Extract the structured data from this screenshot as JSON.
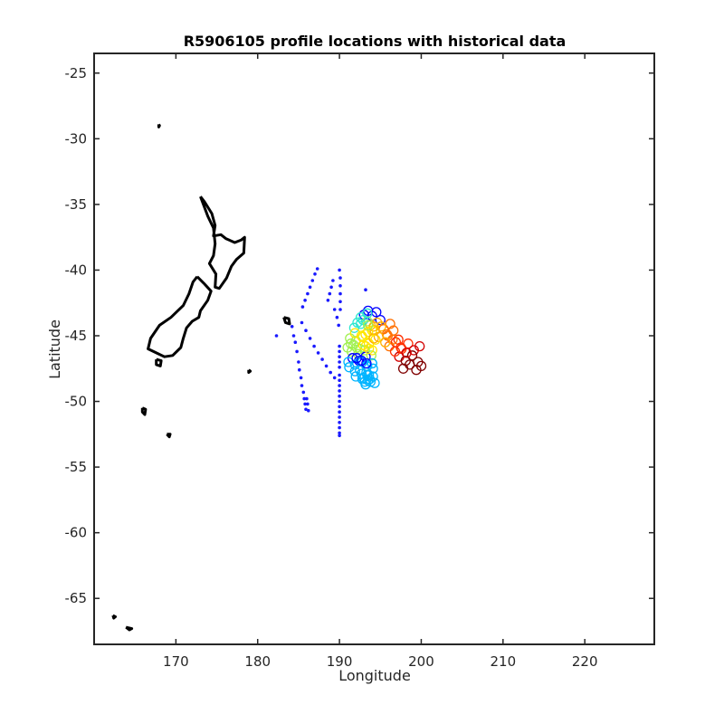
{
  "chart_data": {
    "type": "scatter",
    "title": "R5906105 profile locations with historical data",
    "xlabel": "Longitude",
    "ylabel": "Latitude",
    "xlim": [
      160,
      228.5
    ],
    "ylim": [
      -68.5,
      -23.5
    ],
    "xticks": [
      170,
      180,
      190,
      200,
      210,
      220
    ],
    "yticks": [
      -25,
      -30,
      -35,
      -40,
      -45,
      -50,
      -55,
      -60,
      -65
    ],
    "grid": false,
    "colors": {
      "coast": "#000000",
      "profiles": "#1a1aff",
      "historical_colormap": [
        "#00008f",
        "#0000ff",
        "#00b4ff",
        "#2ee6d0",
        "#a0f050",
        "#ffe600",
        "#ffb000",
        "#ff7000",
        "#ff3000",
        "#d20000",
        "#800000"
      ]
    },
    "series": [
      {
        "marker": "dot",
        "x": [
          182.3,
          184.2,
          184.4,
          184.6,
          184.8,
          185.0,
          185.1,
          185.3,
          185.4,
          185.6,
          185.7,
          185.8,
          185.9,
          186.0,
          186.1,
          186.2,
          185.5,
          185.8,
          186.1,
          186.4,
          186.7,
          187.0,
          187.3,
          185.4,
          185.9,
          186.4,
          186.9,
          187.4,
          187.9,
          188.4,
          188.9,
          189.4,
          188.6,
          188.8,
          189.0,
          189.2,
          189.4,
          189.7,
          189.9,
          190.0,
          190.1,
          190.1,
          190.1,
          190.1,
          190.1,
          190.0,
          190.0,
          190.0,
          190.0,
          190.0,
          190.0,
          190.0,
          190.0,
          190.0,
          190.0,
          190.0,
          190.0,
          190.0,
          190.0,
          190.0,
          190.0,
          190.0,
          190.0,
          193.2
        ],
        "y": [
          -45.0,
          -44.3,
          -45.0,
          -45.5,
          -46.2,
          -47.0,
          -47.6,
          -48.2,
          -48.8,
          -49.3,
          -49.8,
          -50.2,
          -50.6,
          -49.8,
          -50.2,
          -50.7,
          -42.8,
          -42.3,
          -41.8,
          -41.3,
          -40.8,
          -40.3,
          -39.9,
          -44.0,
          -44.6,
          -45.2,
          -45.8,
          -46.3,
          -46.8,
          -47.3,
          -47.8,
          -48.2,
          -42.3,
          -41.8,
          -41.3,
          -40.8,
          -43.0,
          -43.6,
          -44.2,
          -40.0,
          -40.6,
          -41.2,
          -41.8,
          -42.4,
          -43.0,
          -48.0,
          -48.4,
          -48.8,
          -49.2,
          -49.6,
          -50.0,
          -50.4,
          -50.8,
          -51.2,
          -51.6,
          -52.0,
          -52.4,
          -52.6,
          -47.4,
          -47.0,
          -46.6,
          -46.2,
          -45.8,
          -41.5
        ]
      },
      {
        "marker": "circle-colored",
        "x": [
          193.0,
          193.5,
          194.0,
          194.5,
          195.0,
          193.8,
          194.6,
          195.4,
          196.2,
          195.9,
          196.6,
          197.2,
          196.1,
          196.9,
          197.6,
          198.4,
          199.1,
          199.8,
          197.3,
          198.1,
          198.9,
          199.6,
          200.0,
          197.8,
          198.6,
          199.4,
          196.8,
          197.5,
          198.2,
          194.3,
          195.1,
          195.8,
          196.5,
          193.2,
          194.0,
          194.8,
          195.6,
          191.3,
          192.0,
          192.8,
          193.6,
          194.4,
          191.0,
          191.7,
          192.5,
          193.2,
          194.0,
          191.8,
          192.6,
          193.4,
          194.2,
          191.5,
          192.3,
          193.1,
          193.9,
          191.6,
          192.4,
          193.2,
          192.6,
          193.4,
          191.9,
          192.7,
          193.5,
          194.2,
          191.4,
          192.1,
          192.9,
          193.6,
          192.2,
          192.9,
          193.5,
          191.1,
          191.9,
          192.6,
          193.3,
          194.0,
          192.5,
          193.3,
          194.1,
          191.2,
          191.9,
          192.7,
          193.4,
          192.0,
          192.8,
          193.6,
          193.1,
          193.7,
          194.3,
          192.8,
          193.4,
          194.0,
          192.9,
          193.5,
          194.1,
          193.2,
          193.8,
          192.1,
          192.7,
          193.3
        ],
        "y": [
          -43.4,
          -43.1,
          -43.5,
          -43.2,
          -43.8,
          -44.2,
          -44.0,
          -44.5,
          -44.1,
          -45.0,
          -44.6,
          -45.3,
          -45.8,
          -45.5,
          -46.0,
          -45.6,
          -46.1,
          -45.8,
          -46.6,
          -46.9,
          -46.5,
          -47.0,
          -47.3,
          -47.5,
          -47.2,
          -47.6,
          -46.2,
          -45.9,
          -46.3,
          -44.6,
          -44.3,
          -44.9,
          -45.3,
          -44.9,
          -44.6,
          -45.1,
          -45.5,
          -45.2,
          -45.4,
          -45.1,
          -45.6,
          -45.3,
          -45.9,
          -45.7,
          -46.0,
          -45.8,
          -46.1,
          -44.4,
          -44.1,
          -43.9,
          -44.3,
          -46.2,
          -46.4,
          -46.1,
          -46.5,
          -46.7,
          -46.9,
          -46.6,
          -43.6,
          -43.3,
          -44.8,
          -45.0,
          -44.7,
          -45.2,
          -45.6,
          -45.9,
          -45.7,
          -46.0,
          -44.0,
          -43.8,
          -44.2,
          -47.0,
          -47.2,
          -46.9,
          -47.3,
          -47.1,
          -47.6,
          -47.8,
          -47.5,
          -47.4,
          -47.7,
          -47.9,
          -48.0,
          -48.1,
          -48.3,
          -48.0,
          -48.5,
          -48.3,
          -48.6,
          -47.0,
          -47.3,
          -47.1,
          -48.2,
          -48.4,
          -48.1,
          -48.7,
          -48.5,
          -46.7,
          -46.9,
          -47.1
        ],
        "color_index": [
          1,
          1,
          1,
          1,
          1,
          6,
          6,
          7,
          7,
          7,
          7,
          8,
          7,
          8,
          8,
          8,
          9,
          9,
          9,
          10,
          10,
          10,
          10,
          10,
          10,
          10,
          8,
          8,
          9,
          6,
          6,
          7,
          7,
          5,
          5,
          6,
          6,
          4,
          4,
          5,
          5,
          5,
          4,
          4,
          4,
          5,
          5,
          3,
          3,
          4,
          6,
          4,
          4,
          4,
          4,
          1,
          1,
          1,
          3,
          3,
          5,
          5,
          5,
          6,
          4,
          4,
          5,
          5,
          3,
          3,
          4,
          2,
          2,
          2,
          2,
          2,
          2,
          2,
          2,
          2,
          2,
          2,
          2,
          2,
          2,
          2,
          2,
          2,
          2,
          2,
          2,
          2,
          2,
          2,
          2,
          2,
          2,
          1,
          1,
          1
        ]
      }
    ],
    "coast": [
      [
        [
          173.0,
          -34.4
        ],
        [
          173.5,
          -34.8
        ],
        [
          174.4,
          -35.7
        ],
        [
          174.8,
          -36.6
        ],
        [
          174.6,
          -37.4
        ],
        [
          175.5,
          -37.3
        ],
        [
          176.1,
          -37.6
        ],
        [
          177.2,
          -37.9
        ],
        [
          178.0,
          -37.7
        ],
        [
          178.4,
          -37.5
        ],
        [
          178.3,
          -38.7
        ],
        [
          177.4,
          -39.2
        ],
        [
          176.8,
          -39.7
        ],
        [
          176.2,
          -40.6
        ],
        [
          175.3,
          -41.4
        ],
        [
          174.8,
          -41.3
        ],
        [
          174.9,
          -40.3
        ],
        [
          174.1,
          -39.5
        ],
        [
          174.6,
          -38.9
        ],
        [
          174.8,
          -38.0
        ],
        [
          174.6,
          -36.8
        ],
        [
          173.9,
          -35.9
        ],
        [
          173.0,
          -34.4
        ]
      ],
      [
        [
          172.6,
          -40.5
        ],
        [
          173.4,
          -41.0
        ],
        [
          174.3,
          -41.6
        ],
        [
          173.9,
          -42.3
        ],
        [
          173.0,
          -43.1
        ],
        [
          172.8,
          -43.6
        ],
        [
          172.0,
          -43.9
        ],
        [
          171.3,
          -44.4
        ],
        [
          170.9,
          -45.2
        ],
        [
          170.6,
          -45.9
        ],
        [
          169.6,
          -46.5
        ],
        [
          168.6,
          -46.6
        ],
        [
          167.6,
          -46.3
        ],
        [
          166.6,
          -46.0
        ],
        [
          166.9,
          -45.2
        ],
        [
          168.0,
          -44.2
        ],
        [
          169.4,
          -43.6
        ],
        [
          170.9,
          -42.7
        ],
        [
          171.6,
          -41.8
        ],
        [
          172.1,
          -40.9
        ],
        [
          172.6,
          -40.5
        ]
      ],
      [
        [
          167.6,
          -46.8
        ],
        [
          168.2,
          -46.9
        ],
        [
          168.1,
          -47.3
        ],
        [
          167.6,
          -47.2
        ],
        [
          167.6,
          -46.8
        ]
      ],
      [
        [
          183.2,
          -43.6
        ],
        [
          183.8,
          -43.7
        ],
        [
          183.9,
          -44.1
        ],
        [
          183.4,
          -44.0
        ],
        [
          183.2,
          -43.6
        ]
      ],
      [
        [
          165.9,
          -50.5
        ],
        [
          166.3,
          -50.6
        ],
        [
          166.2,
          -51.0
        ],
        [
          165.9,
          -50.8
        ],
        [
          165.9,
          -50.5
        ]
      ],
      [
        [
          168.9,
          -52.5
        ],
        [
          169.3,
          -52.5
        ],
        [
          169.2,
          -52.7
        ],
        [
          168.9,
          -52.5
        ]
      ],
      [
        [
          178.9,
          -47.6
        ],
        [
          179.1,
          -47.7
        ],
        [
          178.9,
          -47.8
        ],
        [
          178.9,
          -47.6
        ]
      ],
      [
        [
          162.3,
          -66.3
        ],
        [
          162.6,
          -66.4
        ],
        [
          162.4,
          -66.5
        ],
        [
          162.3,
          -66.3
        ]
      ],
      [
        [
          163.9,
          -67.2
        ],
        [
          164.6,
          -67.3
        ],
        [
          164.3,
          -67.4
        ],
        [
          163.9,
          -67.2
        ]
      ],
      [
        [
          167.9,
          -28.9
        ],
        [
          168.0,
          -29.0
        ],
        [
          167.9,
          -29.1
        ],
        [
          167.9,
          -28.9
        ]
      ]
    ]
  }
}
